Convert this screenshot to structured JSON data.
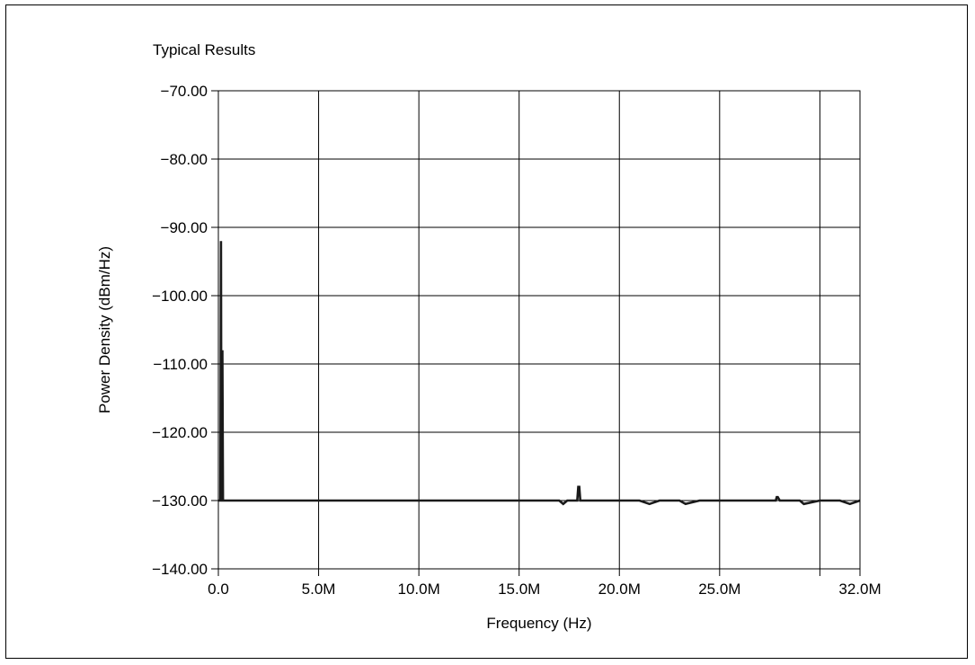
{
  "chart_data": {
    "type": "line",
    "title": "Typical Results",
    "xlabel": "Frequency (Hz)",
    "ylabel": "Power Density (dBm/Hz)",
    "xlim": [
      0,
      32000000
    ],
    "ylim": [
      -140,
      -70
    ],
    "grid": true,
    "legend": "none",
    "x_ticks": [
      0,
      5000000,
      10000000,
      15000000,
      20000000,
      25000000,
      30000000,
      32000000
    ],
    "x_tick_labels": [
      "0.0",
      "5.0M",
      "10.0M",
      "15.0M",
      "20.0M",
      "25.0M",
      "",
      "32.0M"
    ],
    "y_ticks": [
      -70,
      -80,
      -90,
      -100,
      -110,
      -120,
      -130,
      -140
    ],
    "y_tick_labels": [
      "−70.00",
      "−80.00",
      "−90.00",
      "−100.00",
      "−110.00",
      "−120.00",
      "−130.00",
      "−140.00"
    ],
    "series": [
      {
        "color": "#1a1a1a",
        "x": [
          0,
          60000,
          100000,
          130000,
          150000,
          170000,
          200000,
          230000,
          260000,
          300000,
          1000000,
          2000000,
          4000000,
          6000000,
          8000000,
          10000000,
          12000000,
          14000000,
          16000000,
          17000000,
          17200000,
          17400000,
          17900000,
          17950000,
          18000000,
          18050000,
          18100000,
          19000000,
          20000000,
          21000000,
          21500000,
          22000000,
          23000000,
          23300000,
          24000000,
          26000000,
          27800000,
          27850000,
          27900000,
          28000000,
          29000000,
          29200000,
          30000000,
          31000000,
          31500000,
          32000000
        ],
        "y": [
          -130,
          -130,
          -130,
          -92,
          -130,
          -130,
          -108,
          -130,
          -130,
          -130,
          -130,
          -130,
          -130,
          -130,
          -130,
          -130,
          -130,
          -130,
          -130,
          -130,
          -130.5,
          -130,
          -130,
          -128,
          -128,
          -130,
          -130,
          -130,
          -130,
          -130,
          -130.5,
          -130,
          -130,
          -130.5,
          -130,
          -130,
          -130,
          -129.5,
          -129.5,
          -130,
          -130,
          -130.5,
          -130,
          -130,
          -130.5,
          -130
        ]
      }
    ]
  }
}
